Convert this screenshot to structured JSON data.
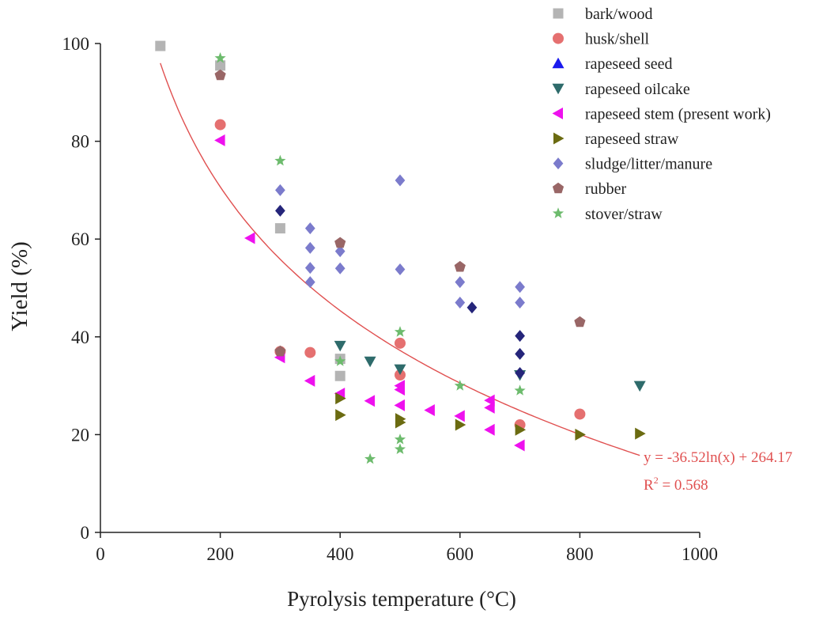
{
  "chart_data": {
    "type": "scatter",
    "title": "",
    "xlabel": "Pyrolysis temperature (°C)",
    "ylabel": "Yield (%)",
    "xlim": [
      0,
      1000
    ],
    "ylim": [
      0,
      100
    ],
    "xticks": [
      0,
      200,
      400,
      600,
      800,
      1000
    ],
    "yticks": [
      0,
      20,
      40,
      60,
      80,
      100
    ],
    "grid": false,
    "legend_position": "top-right",
    "series": [
      {
        "name": "bark/wood",
        "marker": "square",
        "color": "#b4b4b4",
        "points": [
          [
            100,
            99.5
          ],
          [
            200,
            95.5
          ],
          [
            300,
            62.2
          ],
          [
            400,
            35.5
          ],
          [
            400,
            32.0
          ]
        ]
      },
      {
        "name": "husk/shell",
        "marker": "circle",
        "color": "#e57070",
        "points": [
          [
            200,
            83.4
          ],
          [
            300,
            37.0
          ],
          [
            350,
            36.8
          ],
          [
            500,
            38.7
          ],
          [
            500,
            32.2
          ],
          [
            700,
            22.0
          ],
          [
            800,
            24.2
          ]
        ]
      },
      {
        "name": "rapeseed seed",
        "marker": "triangle-up",
        "color": "#1a1aee",
        "points": []
      },
      {
        "name": "rapeseed oilcake",
        "marker": "triangle-down",
        "color": "#2e6b6b",
        "points": [
          [
            400,
            38.2
          ],
          [
            450,
            35.0
          ],
          [
            500,
            33.4
          ],
          [
            700,
            32.2
          ],
          [
            900,
            30.0
          ]
        ]
      },
      {
        "name": "rapeseed stem (present work)",
        "marker": "triangle-left",
        "color": "#ee11ee",
        "points": [
          [
            200,
            80.2
          ],
          [
            250,
            60.2
          ],
          [
            300,
            35.8
          ],
          [
            350,
            31.0
          ],
          [
            400,
            28.4
          ],
          [
            450,
            26.9
          ],
          [
            500,
            30.0
          ],
          [
            500,
            29.2
          ],
          [
            500,
            26.0
          ],
          [
            550,
            25.0
          ],
          [
            600,
            23.8
          ],
          [
            650,
            27.0
          ],
          [
            650,
            25.5
          ],
          [
            650,
            21.0
          ],
          [
            700,
            17.8
          ]
        ]
      },
      {
        "name": "rapeseed straw",
        "marker": "triangle-right",
        "color": "#6b6b11",
        "points": [
          [
            400,
            27.4
          ],
          [
            400,
            24.0
          ],
          [
            500,
            23.2
          ],
          [
            500,
            22.5
          ],
          [
            600,
            22.0
          ],
          [
            700,
            21.0
          ],
          [
            800,
            20.0
          ],
          [
            900,
            20.2
          ]
        ]
      },
      {
        "name": "sludge/litter/manure",
        "marker": "diamond",
        "color": "#7b7bcc",
        "points": [
          [
            300,
            70.0
          ],
          [
            350,
            62.2
          ],
          [
            350,
            58.2
          ],
          [
            350,
            54.1
          ],
          [
            350,
            51.2
          ],
          [
            400,
            57.5
          ],
          [
            400,
            54.0
          ],
          [
            500,
            72.0
          ],
          [
            500,
            53.8
          ],
          [
            600,
            51.2
          ],
          [
            600,
            47.0
          ],
          [
            700,
            50.2
          ],
          [
            700,
            47.0
          ]
        ]
      },
      {
        "name": "sludge/litter/manure (dark)",
        "marker": "diamond",
        "color": "#25257a",
        "legend": false,
        "points": [
          [
            300,
            65.8
          ],
          [
            620,
            46.0
          ],
          [
            700,
            40.2
          ],
          [
            700,
            36.5
          ],
          [
            700,
            32.6
          ]
        ]
      },
      {
        "name": "rubber",
        "marker": "pentagon",
        "color": "#996666",
        "points": [
          [
            200,
            93.5
          ],
          [
            300,
            37.0
          ],
          [
            400,
            59.2
          ],
          [
            600,
            54.3
          ],
          [
            800,
            43.0
          ]
        ]
      },
      {
        "name": "stover/straw",
        "marker": "star",
        "color": "#6dbb6d",
        "points": [
          [
            200,
            97.0
          ],
          [
            300,
            76.0
          ],
          [
            400,
            35.0
          ],
          [
            450,
            15.0
          ],
          [
            500,
            41.0
          ],
          [
            500,
            19.0
          ],
          [
            500,
            17.0
          ],
          [
            600,
            30.0
          ],
          [
            700,
            29.0
          ]
        ]
      }
    ],
    "fit": {
      "type": "log",
      "a": -36.52,
      "b": 264.17,
      "x_range": [
        100,
        900
      ],
      "color": "#e05050",
      "equation": "y = -36.52ln(x) + 264.17",
      "r2_label": "R",
      "r2_sup": "2",
      "r2_value": " = 0.568"
    }
  }
}
